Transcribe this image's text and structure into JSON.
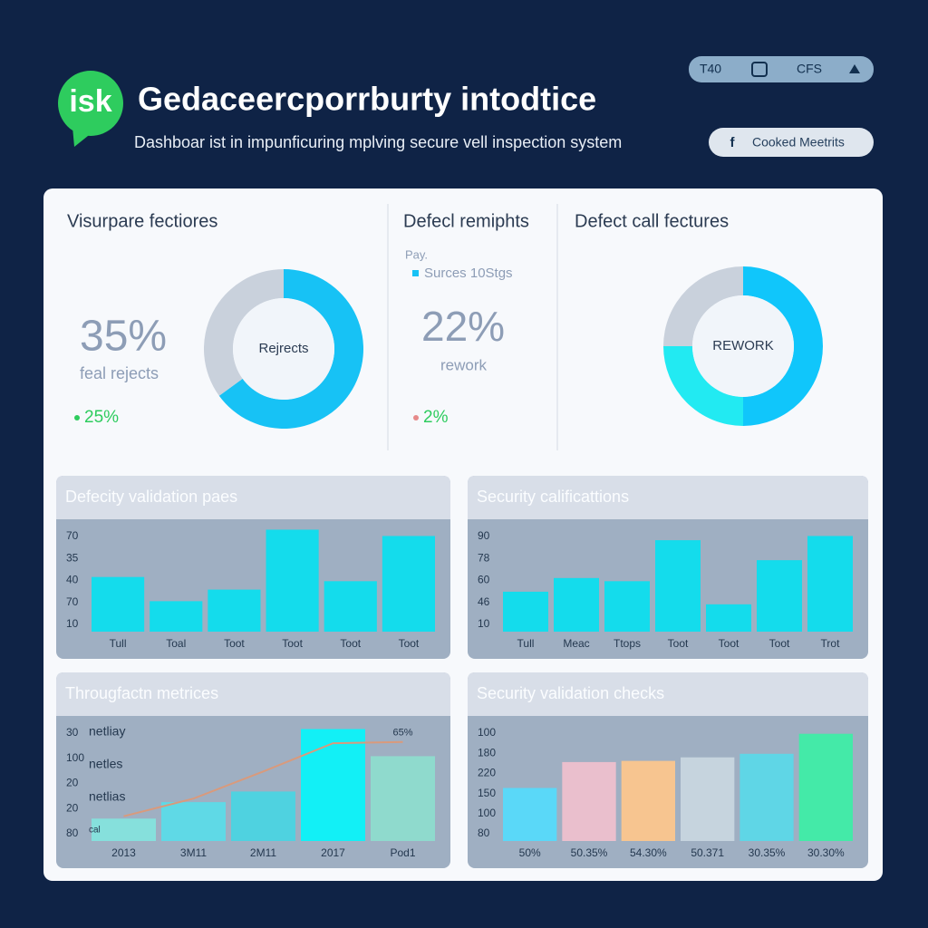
{
  "header": {
    "logo": "isk",
    "title": "Gedaceercporrburty intodtice",
    "subtitle": "Dashboar ist in impunficuring mplving secure vell inspection system",
    "buttons": [
      "T40",
      "CFS"
    ],
    "action": "Cooked Meetrits"
  },
  "kpis": [
    {
      "title": "Visurpare fectiores",
      "value": "35%",
      "caption": "feal rejects",
      "delta": "25%",
      "donut": {
        "center_label": "Rejrects",
        "segments": [
          {
            "value": 65,
            "color": "#17c2f5"
          },
          {
            "value": 35,
            "color": "#c9d1dc"
          }
        ]
      }
    },
    {
      "title": "Defecl remiphts",
      "note": "Pay.",
      "legend": "Surces 10Stgs",
      "value": "22%",
      "caption": "rework",
      "delta": "2%"
    },
    {
      "title": "Defect call fectures",
      "donut": {
        "center_label": "REWORK",
        "segments": [
          {
            "value": 50,
            "color": "#10c6fb"
          },
          {
            "value": 25,
            "color": "#22eaf2"
          },
          {
            "value": 25,
            "color": "#c9d1dc"
          }
        ]
      }
    }
  ],
  "charts": [
    {
      "type": "bar",
      "title": "Defecity validation paes",
      "axis_labels": [
        "70",
        "35",
        "40",
        "70",
        "10"
      ],
      "ylim": [
        0,
        100
      ],
      "categories": [
        "Tull",
        "Toal",
        "Toot",
        "Toot",
        "Toot",
        "Toot"
      ],
      "values": [
        52,
        29,
        40,
        97,
        48,
        91
      ],
      "color": "#14dcec"
    },
    {
      "type": "bar",
      "title": "Security calificattions",
      "axis_labels": [
        "90",
        "78",
        "60",
        "46",
        "10"
      ],
      "ylim": [
        0,
        100
      ],
      "categories": [
        "Tull",
        "Meac",
        "Ttops",
        "Toot",
        "Toot",
        "Toot",
        "Trot"
      ],
      "values": [
        38,
        51,
        48,
        87,
        26,
        68,
        91
      ],
      "color": "#14dcec"
    },
    {
      "type": "bar",
      "title": "Througfactn metrices",
      "axis_labels": [
        "30",
        "100",
        "20",
        "20",
        "80"
      ],
      "ylim": [
        0,
        100
      ],
      "notes": [
        "netliay",
        "netles",
        "netlias",
        "cal"
      ],
      "annotation": "65%",
      "categories": [
        "2013",
        "3M11",
        "2M11",
        "2017",
        "Pod1"
      ],
      "values": [
        19,
        33,
        42,
        95,
        72
      ],
      "colors": [
        "#86e0dc",
        "#5fd9e6",
        "#4fd2e0",
        "#12f0f6",
        "#8fdacd"
      ],
      "line_values": [
        21,
        36,
        59,
        83,
        84
      ],
      "line_color": "#d99a7c"
    },
    {
      "type": "bar",
      "title": "Security validation checks",
      "axis_labels": [
        "100",
        "180",
        "220",
        "150",
        "100",
        "80"
      ],
      "ylim": [
        0,
        100
      ],
      "categories": [
        "50%",
        "50.35%",
        "54.30%",
        "50.371",
        "30.35%",
        "30.30%"
      ],
      "values": [
        45,
        67,
        68,
        71,
        74,
        91
      ],
      "colors": [
        "#5ad8f8",
        "#eabfcd",
        "#f7c590",
        "#c6d4de",
        "#5fd6e6",
        "#44eaa8"
      ]
    }
  ]
}
